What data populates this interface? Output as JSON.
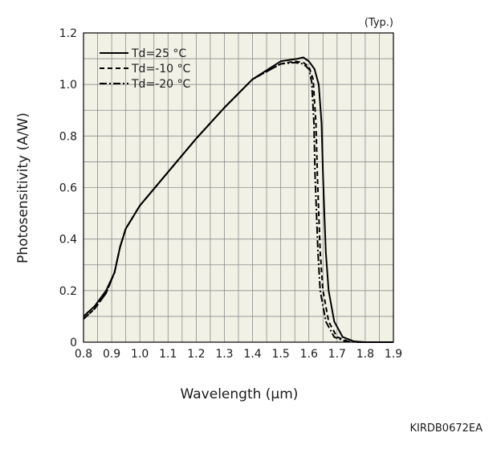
{
  "chart_data": {
    "type": "line",
    "title": "",
    "xlabel": "Wavelength (µm)",
    "ylabel": "Photosensitivity (A/W)",
    "annotation": "(Typ.)",
    "document_code": "KIRDB0672EA",
    "xlim": [
      0.8,
      1.9
    ],
    "ylim": [
      0,
      1.2
    ],
    "x_ticks": [
      "0.8",
      "0.9",
      "1.0",
      "1.1",
      "1.2",
      "1.3",
      "1.4",
      "1.5",
      "1.6",
      "1.7",
      "1.8",
      "1.9"
    ],
    "y_ticks": [
      "0",
      "0.2",
      "0.4",
      "0.6",
      "0.8",
      "1.0",
      "1.2"
    ],
    "grid": true,
    "legend_position": "top-left",
    "colors": {
      "background": "#f2f1e6",
      "line": "#000000",
      "grid": "#8c8c8c"
    },
    "series": [
      {
        "name": "Td=25 °C",
        "style": "solid",
        "points": [
          [
            0.8,
            0.1
          ],
          [
            0.84,
            0.14
          ],
          [
            0.88,
            0.2
          ],
          [
            0.91,
            0.27
          ],
          [
            0.93,
            0.37
          ],
          [
            0.95,
            0.44
          ],
          [
            1.0,
            0.53
          ],
          [
            1.1,
            0.66
          ],
          [
            1.2,
            0.79
          ],
          [
            1.3,
            0.91
          ],
          [
            1.4,
            1.02
          ],
          [
            1.5,
            1.09
          ],
          [
            1.56,
            1.1
          ],
          [
            1.58,
            1.105
          ],
          [
            1.6,
            1.09
          ],
          [
            1.62,
            1.06
          ],
          [
            1.635,
            1.0
          ],
          [
            1.645,
            0.85
          ],
          [
            1.65,
            0.65
          ],
          [
            1.655,
            0.5
          ],
          [
            1.66,
            0.35
          ],
          [
            1.67,
            0.2
          ],
          [
            1.69,
            0.08
          ],
          [
            1.72,
            0.02
          ],
          [
            1.76,
            0.003
          ],
          [
            1.8,
            0
          ],
          [
            1.9,
            0
          ]
        ]
      },
      {
        "name": "Td=-10 °C",
        "style": "dashed",
        "points": [
          [
            0.8,
            0.09
          ],
          [
            0.84,
            0.13
          ],
          [
            0.88,
            0.19
          ],
          [
            0.91,
            0.27
          ],
          [
            0.93,
            0.37
          ],
          [
            0.95,
            0.44
          ],
          [
            1.0,
            0.53
          ],
          [
            1.1,
            0.66
          ],
          [
            1.2,
            0.79
          ],
          [
            1.3,
            0.91
          ],
          [
            1.4,
            1.02
          ],
          [
            1.5,
            1.08
          ],
          [
            1.55,
            1.09
          ],
          [
            1.58,
            1.085
          ],
          [
            1.6,
            1.07
          ],
          [
            1.615,
            1.02
          ],
          [
            1.625,
            0.85
          ],
          [
            1.63,
            0.65
          ],
          [
            1.635,
            0.5
          ],
          [
            1.64,
            0.35
          ],
          [
            1.65,
            0.2
          ],
          [
            1.67,
            0.08
          ],
          [
            1.7,
            0.02
          ],
          [
            1.74,
            0.003
          ],
          [
            1.78,
            0
          ],
          [
            1.9,
            0
          ]
        ]
      },
      {
        "name": "Td=-20 °C",
        "style": "dashdot",
        "points": [
          [
            0.8,
            0.09
          ],
          [
            0.84,
            0.13
          ],
          [
            0.88,
            0.19
          ],
          [
            0.91,
            0.27
          ],
          [
            0.93,
            0.37
          ],
          [
            0.95,
            0.44
          ],
          [
            1.0,
            0.53
          ],
          [
            1.1,
            0.66
          ],
          [
            1.2,
            0.79
          ],
          [
            1.3,
            0.91
          ],
          [
            1.4,
            1.02
          ],
          [
            1.5,
            1.08
          ],
          [
            1.55,
            1.085
          ],
          [
            1.58,
            1.08
          ],
          [
            1.6,
            1.06
          ],
          [
            1.61,
            1.01
          ],
          [
            1.618,
            0.85
          ],
          [
            1.622,
            0.65
          ],
          [
            1.627,
            0.5
          ],
          [
            1.632,
            0.35
          ],
          [
            1.64,
            0.2
          ],
          [
            1.66,
            0.08
          ],
          [
            1.69,
            0.02
          ],
          [
            1.73,
            0.003
          ],
          [
            1.77,
            0
          ],
          [
            1.9,
            0
          ]
        ]
      }
    ]
  }
}
